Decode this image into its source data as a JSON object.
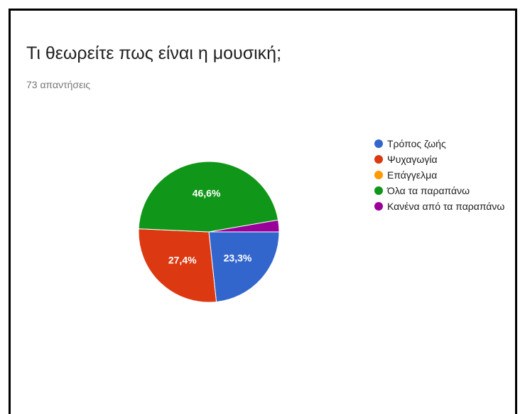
{
  "chart_data": {
    "type": "pie",
    "title": "Τι θεωρείτε πως είναι η μουσική;",
    "subtitle": "73 απαντήσεις",
    "legend_position": "right",
    "categories": [
      "Τρόπος ζωής",
      "Ψυχαγωγία",
      "Επάγγελμα",
      "Όλα τα παραπάνω",
      "Κανένα από τα παραπάνω"
    ],
    "values": [
      23.3,
      27.4,
      0,
      46.6,
      2.7
    ],
    "labels": [
      "23,3%",
      "27,4%",
      "",
      "46,6%",
      ""
    ],
    "colors": [
      "#3366cc",
      "#dc3912",
      "#ff9900",
      "#109618",
      "#990099"
    ]
  }
}
